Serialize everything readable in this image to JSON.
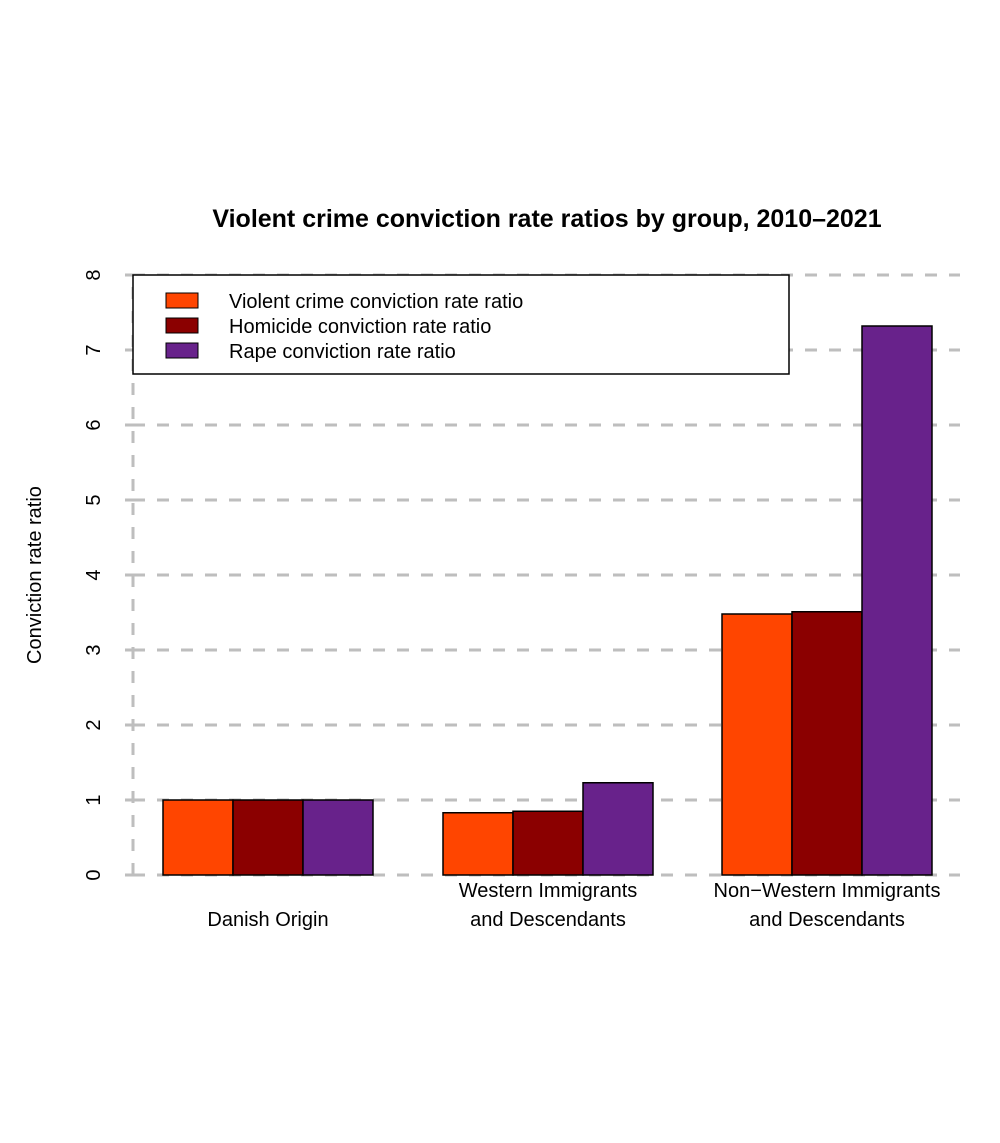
{
  "chart_data": {
    "type": "bar",
    "title": "Violent crime conviction rate ratios by group, 2010–2021",
    "xlabel": "",
    "ylabel": "Conviction rate ratio",
    "ylim": [
      0,
      8
    ],
    "yticks": [
      0,
      1,
      2,
      3,
      4,
      5,
      6,
      7,
      8
    ],
    "ytick_labels": [
      "0",
      "1",
      "2",
      "3",
      "4",
      "5",
      "6",
      "7",
      "8"
    ],
    "grid": true,
    "legend_position": "top-left",
    "categories": [
      [
        "Danish Origin"
      ],
      [
        "Western Immigrants",
        "and Descendants"
      ],
      [
        "Non−Western Immigrants",
        "and Descendants"
      ]
    ],
    "series": [
      {
        "name": "Violent crime conviction rate ratio",
        "color": "#ff4500",
        "values": [
          1.0,
          0.83,
          3.48
        ]
      },
      {
        "name": "Homicide conviction rate ratio",
        "color": "#8b0000",
        "values": [
          1.0,
          0.85,
          3.51
        ]
      },
      {
        "name": "Rape conviction rate ratio",
        "color": "#68228b",
        "values": [
          1.0,
          1.23,
          7.32
        ]
      }
    ]
  }
}
